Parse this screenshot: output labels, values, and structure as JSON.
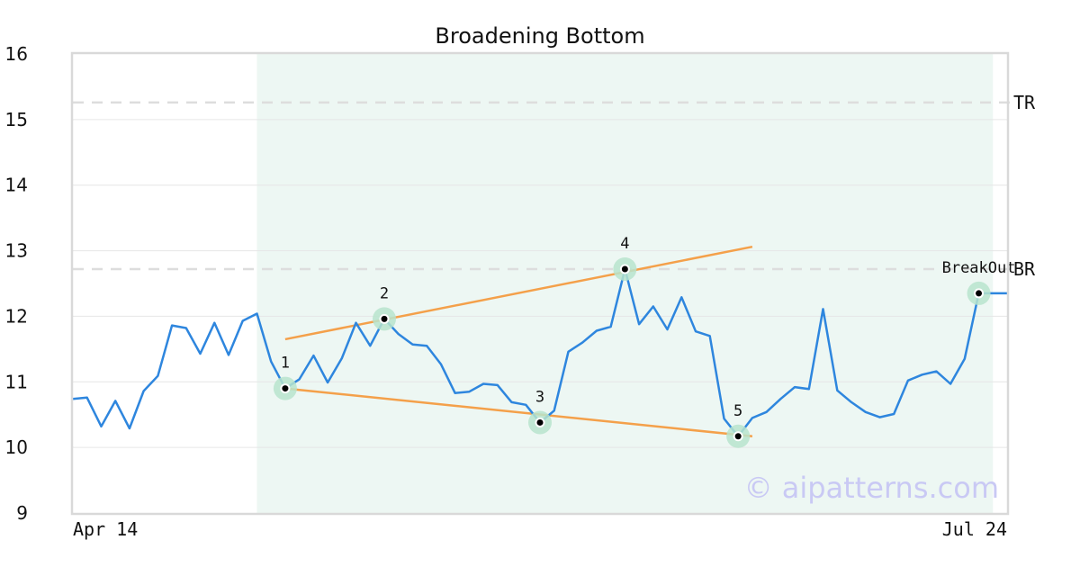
{
  "chart_data": {
    "type": "line",
    "title": "Broadening Bottom",
    "xlabel": "",
    "ylabel": "",
    "ylim": [
      9,
      16
    ],
    "yticks": [
      "9",
      "10",
      "11",
      "12",
      "13",
      "14",
      "15",
      "16"
    ],
    "x_tick_labels": [
      "Apr 14",
      "Jul 24"
    ],
    "grid": true,
    "pattern_region": {
      "start_index": 13,
      "end_index": 65
    },
    "series": [
      {
        "color": "#2e86de",
        "values": [
          10.74,
          10.76,
          10.32,
          10.71,
          10.29,
          10.86,
          11.09,
          11.86,
          11.82,
          11.43,
          11.9,
          11.41,
          11.93,
          12.04,
          11.31,
          10.9,
          11.04,
          11.4,
          10.99,
          11.36,
          11.9,
          11.55,
          11.96,
          11.73,
          11.57,
          11.55,
          11.27,
          10.83,
          10.85,
          10.97,
          10.95,
          10.69,
          10.65,
          10.38,
          10.56,
          11.46,
          11.6,
          11.78,
          11.84,
          12.72,
          11.88,
          12.15,
          11.8,
          12.29,
          11.77,
          11.7,
          10.44,
          10.17,
          10.45,
          10.54,
          10.74,
          10.92,
          10.89,
          12.11,
          10.87,
          10.69,
          10.54,
          10.46,
          10.51,
          11.02,
          11.11,
          11.16,
          10.97,
          11.35,
          12.35,
          12.35,
          12.35
        ]
      }
    ],
    "levels": [
      {
        "label": "TR",
        "value": 15.26
      },
      {
        "label": "BR",
        "value": 12.72
      }
    ],
    "trendlines": [
      {
        "from": {
          "index": 15,
          "value": 11.65
        },
        "to": {
          "index": 48,
          "value": 13.06
        }
      },
      {
        "from": {
          "index": 15,
          "value": 10.9
        },
        "to": {
          "index": 48,
          "value": 10.17
        }
      }
    ],
    "points": [
      {
        "label": "1",
        "index": 15,
        "value": 10.9,
        "label_pos": "above"
      },
      {
        "label": "2",
        "index": 22,
        "value": 11.96,
        "label_pos": "above"
      },
      {
        "label": "3",
        "index": 33,
        "value": 10.38,
        "label_pos": "above"
      },
      {
        "label": "4",
        "index": 39,
        "value": 12.72,
        "label_pos": "above"
      },
      {
        "label": "5",
        "index": 47,
        "value": 10.17,
        "label_pos": "above"
      },
      {
        "label": "BreakOut",
        "index": 64,
        "value": 12.35,
        "label_pos": "above"
      }
    ],
    "colors": {
      "line": "#2e86de",
      "trend": "#f4a04a",
      "highlight": "#edf7f3",
      "marker_ring": "#b7e4cd",
      "level": "#dddddd",
      "grid": "#e6e6e6",
      "frame": "#d9d9d9"
    }
  },
  "watermark": "© aipatterns.com"
}
